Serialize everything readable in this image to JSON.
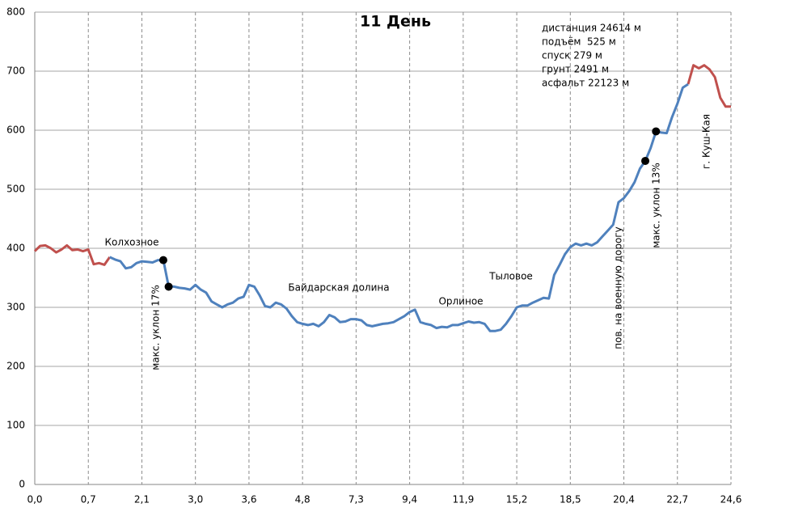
{
  "chart_data": {
    "type": "line",
    "title": "11 День",
    "categories": [
      "0,0",
      null,
      null,
      null,
      null,
      null,
      null,
      null,
      null,
      null,
      "0,7",
      null,
      null,
      null,
      null,
      null,
      null,
      null,
      null,
      null,
      "2,1",
      null,
      null,
      null,
      null,
      null,
      null,
      null,
      null,
      null,
      "3,0",
      null,
      null,
      null,
      null,
      null,
      null,
      null,
      null,
      null,
      "3,6",
      null,
      null,
      null,
      null,
      null,
      null,
      null,
      null,
      null,
      "4,8",
      null,
      null,
      null,
      null,
      null,
      null,
      null,
      null,
      null,
      "7,3",
      null,
      null,
      null,
      null,
      null,
      null,
      null,
      null,
      null,
      "9,4",
      null,
      null,
      null,
      null,
      null,
      null,
      null,
      null,
      null,
      "11,9",
      null,
      null,
      null,
      null,
      null,
      null,
      null,
      null,
      null,
      "15,2",
      null,
      null,
      null,
      null,
      null,
      null,
      null,
      null,
      null,
      "18,5",
      null,
      null,
      null,
      null,
      null,
      null,
      null,
      null,
      null,
      "20,4",
      null,
      null,
      null,
      null,
      null,
      null,
      null,
      null,
      null,
      "22,7",
      null,
      null,
      null,
      null,
      null,
      null,
      null,
      null,
      null,
      "24,6"
    ],
    "series": [
      {
        "color": "#c0504d",
        "values": [
          395,
          404,
          405,
          400,
          393,
          398,
          405,
          397,
          398,
          395,
          398,
          373,
          375,
          372,
          385,
          null,
          null,
          null,
          null,
          null,
          null,
          null,
          null,
          null,
          null,
          null,
          null,
          null,
          null,
          null,
          null,
          null,
          null,
          null,
          null,
          null,
          null,
          null,
          null,
          null,
          null,
          null,
          null,
          null,
          null,
          null,
          null,
          null,
          null,
          null,
          null,
          null,
          null,
          null,
          null,
          null,
          null,
          null,
          null,
          null,
          null,
          null,
          null,
          null,
          null,
          null,
          null,
          null,
          null,
          null,
          null,
          null,
          null,
          null,
          null,
          null,
          null,
          null,
          null,
          null,
          null,
          null,
          null,
          null,
          null,
          null,
          null,
          null,
          null,
          null,
          null,
          null,
          null,
          null,
          null,
          null,
          null,
          null,
          null,
          null,
          null,
          null,
          null,
          null,
          null,
          null,
          null,
          null,
          null,
          null,
          null,
          null,
          null,
          null,
          null,
          null,
          null,
          null,
          null,
          null,
          null,
          null,
          678,
          710,
          705,
          710,
          703,
          690,
          655,
          640,
          640
        ]
      },
      {
        "color": "#4f81bd",
        "values": [
          null,
          null,
          null,
          null,
          null,
          null,
          null,
          null,
          null,
          null,
          null,
          null,
          null,
          null,
          385,
          381,
          378,
          366,
          368,
          375,
          378,
          377,
          376,
          380,
          380,
          335,
          335,
          333,
          332,
          330,
          338,
          330,
          325,
          310,
          305,
          300,
          305,
          308,
          315,
          318,
          338,
          335,
          320,
          302,
          300,
          308,
          305,
          298,
          285,
          275,
          272,
          270,
          272,
          268,
          275,
          287,
          283,
          275,
          276,
          280,
          280,
          278,
          270,
          268,
          270,
          272,
          273,
          275,
          280,
          285,
          292,
          296,
          275,
          272,
          270,
          265,
          267,
          266,
          270,
          270,
          273,
          276,
          274,
          275,
          272,
          260,
          260,
          262,
          272,
          285,
          300,
          303,
          303,
          308,
          312,
          316,
          315,
          355,
          372,
          390,
          402,
          408,
          405,
          408,
          405,
          410,
          420,
          430,
          440,
          478,
          485,
          497,
          512,
          535,
          548,
          570,
          598,
          596,
          595,
          622,
          645,
          672,
          678,
          null,
          null,
          null,
          null,
          null,
          null,
          null,
          null
        ]
      }
    ],
    "marker_points": [
      [
        24,
        380
      ],
      [
        25,
        335
      ],
      [
        114,
        548
      ],
      [
        116,
        598
      ]
    ],
    "ylim": [
      0,
      800
    ],
    "yticks": [
      0,
      100,
      200,
      300,
      400,
      500,
      600,
      700,
      800
    ],
    "grid": true,
    "annotations": [
      "Колхозное",
      "макс. уклон 17%",
      "Байдарская долина",
      "Орлиное",
      "Тыловое",
      "пов. на военную дорогу",
      "макс. уклон 13%",
      "г. Куш-Кая"
    ],
    "stats": [
      "дистанция 24614 м",
      "подъём  525 м",
      "спуск 279 м",
      "грунт 2491 м",
      "асфальт 22123 м"
    ]
  }
}
